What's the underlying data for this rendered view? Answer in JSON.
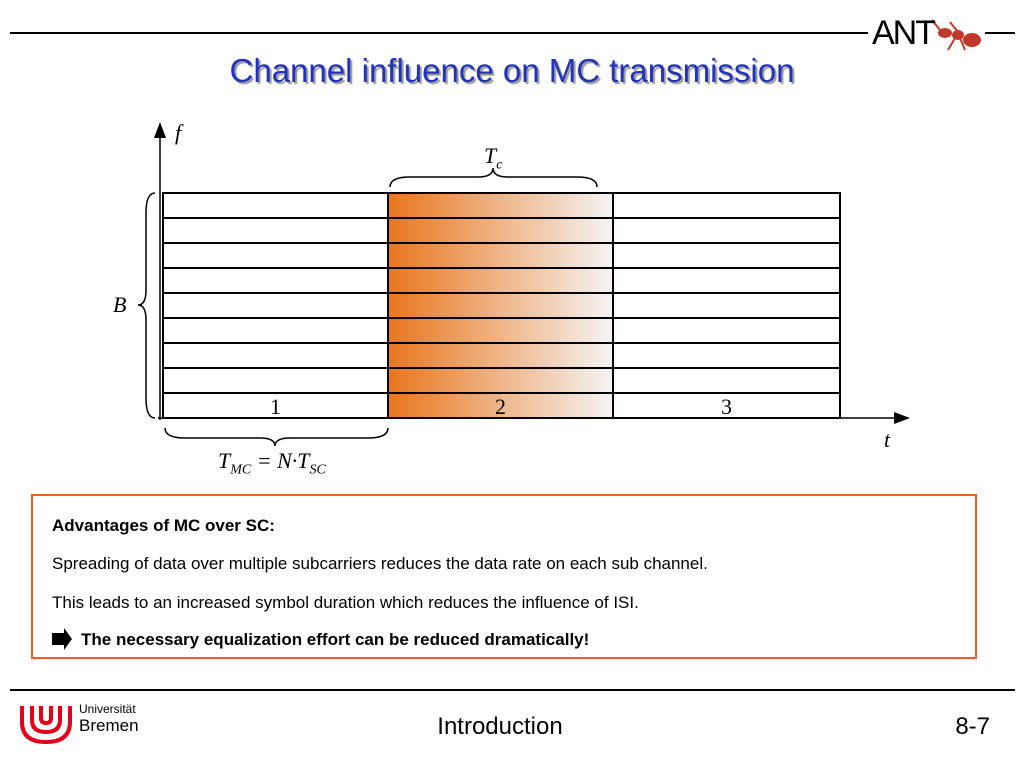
{
  "header": {
    "title": "Channel influence on MC transmission",
    "logo": "ANT"
  },
  "diagram": {
    "f_axis": "f",
    "t_axis": "t",
    "bandwidth": "B",
    "coherence_time": {
      "main": "T",
      "sub": "c"
    },
    "symbols": [
      "1",
      "2",
      "3"
    ],
    "symbol_duration": {
      "t1": "T",
      "s1": "MC",
      "mid": " = N·T",
      "s2": "SC"
    }
  },
  "box": {
    "heading": "Advantages of MC over SC:",
    "lines": [
      "Spreading of data over multiple subcarriers reduces the data rate on each sub channel.",
      "This leads to an increased symbol duration which reduces the influence of ISI."
    ],
    "conclusion": "The necessary equalization effort can be reduced dramatically!"
  },
  "footer": {
    "university_top": "Universität",
    "university_bottom": "Bremen",
    "section": "Introduction",
    "page": "8-7"
  }
}
